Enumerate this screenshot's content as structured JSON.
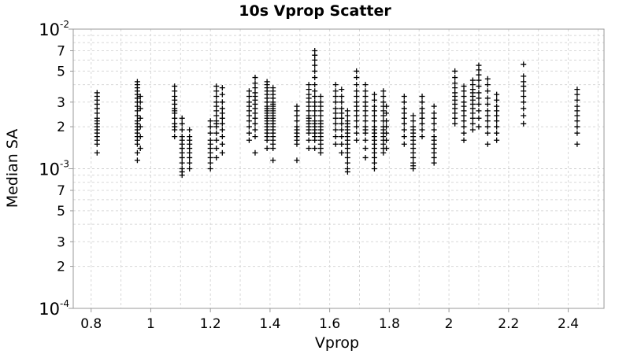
{
  "chart_data": {
    "type": "scatter",
    "title": "10s Vprop Scatter",
    "xlabel": "Vprop",
    "ylabel": "Median SA",
    "xlim": [
      0.74,
      2.52
    ],
    "ylim": [
      0.0001,
      0.01
    ],
    "yscale": "log",
    "grid": true,
    "marker": "+",
    "marker_color": "#000000",
    "x_ticks": [
      "0.8",
      "1",
      "1.2",
      "1.4",
      "1.6",
      "1.8",
      "2",
      "2.2",
      "2.4"
    ],
    "x_tick_values": [
      0.8,
      1.0,
      1.2,
      1.4,
      1.6,
      1.8,
      2.0,
      2.2,
      2.4
    ],
    "y_major_ticks": [
      {
        "value": 0.0001,
        "base": "10",
        "exp": "-4"
      },
      {
        "value": 0.001,
        "base": "10",
        "exp": "-3"
      },
      {
        "value": 0.01,
        "base": "10",
        "exp": "-2"
      }
    ],
    "y_minor_ticks": [
      {
        "value": 0.0002,
        "label": "2"
      },
      {
        "value": 0.0003,
        "label": "3"
      },
      {
        "value": 0.0005,
        "label": "5"
      },
      {
        "value": 0.0007,
        "label": "7"
      },
      {
        "value": 0.002,
        "label": "2"
      },
      {
        "value": 0.003,
        "label": "3"
      },
      {
        "value": 0.005,
        "label": "5"
      },
      {
        "value": 0.007,
        "label": "7"
      }
    ],
    "y_grid_values": [
      0.0002,
      0.0003,
      0.0004,
      0.0005,
      0.0006,
      0.0007,
      0.0008,
      0.0009,
      0.002,
      0.003,
      0.004,
      0.005,
      0.006,
      0.007,
      0.008,
      0.009
    ],
    "x_grid_values": [
      0.8,
      0.9,
      1.0,
      1.1,
      1.2,
      1.3,
      1.4,
      1.5,
      1.6,
      1.7,
      1.8,
      1.9,
      2.0,
      2.1,
      2.2,
      2.3,
      2.4,
      2.5
    ],
    "columns": [
      {
        "x": 0.82,
        "y": [
          0.0013,
          0.0015,
          0.0016,
          0.0017,
          0.0018,
          0.0019,
          0.002,
          0.0021,
          0.0022,
          0.0023,
          0.0025,
          0.0027,
          0.0029,
          0.0031,
          0.0033,
          0.0035
        ]
      },
      {
        "x": 0.955,
        "y": [
          0.00115,
          0.0013,
          0.0015,
          0.0016,
          0.0017,
          0.0018,
          0.0019,
          0.002,
          0.0021,
          0.0022,
          0.0024,
          0.0026,
          0.0028,
          0.003,
          0.0032,
          0.0034,
          0.0036,
          0.0038,
          0.004,
          0.0042
        ]
      },
      {
        "x": 0.965,
        "y": [
          0.0014,
          0.0017,
          0.002,
          0.0023,
          0.0027,
          0.003,
          0.0033
        ]
      },
      {
        "x": 1.08,
        "y": [
          0.0017,
          0.0019,
          0.002,
          0.0021,
          0.0023,
          0.0025,
          0.0026,
          0.0027,
          0.0029,
          0.0031,
          0.0033,
          0.0036,
          0.0039
        ]
      },
      {
        "x": 1.105,
        "y": [
          0.0009,
          0.00095,
          0.001,
          0.0011,
          0.0012,
          0.0013,
          0.0014,
          0.0015,
          0.0016,
          0.0017,
          0.0019,
          0.0021,
          0.0023
        ]
      },
      {
        "x": 1.13,
        "y": [
          0.001,
          0.0011,
          0.0012,
          0.0013,
          0.0014,
          0.0015,
          0.0016,
          0.0017,
          0.0019
        ]
      },
      {
        "x": 1.2,
        "y": [
          0.001,
          0.0011,
          0.0012,
          0.0013,
          0.0014,
          0.0015,
          0.0016,
          0.0018,
          0.002,
          0.0022
        ]
      },
      {
        "x": 1.22,
        "y": [
          0.0012,
          0.0014,
          0.0016,
          0.0018,
          0.002,
          0.0021,
          0.0022,
          0.0024,
          0.0026,
          0.0028,
          0.003,
          0.0033,
          0.0036,
          0.0039
        ]
      },
      {
        "x": 1.24,
        "y": [
          0.0013,
          0.0015,
          0.0017,
          0.0019,
          0.0021,
          0.0023,
          0.0025,
          0.0027,
          0.003,
          0.0034,
          0.0038
        ]
      },
      {
        "x": 1.33,
        "y": [
          0.0016,
          0.0018,
          0.002,
          0.0022,
          0.0024,
          0.0026,
          0.0028,
          0.003,
          0.0033,
          0.0036
        ]
      },
      {
        "x": 1.35,
        "y": [
          0.0013,
          0.0017,
          0.0019,
          0.0021,
          0.0023,
          0.0025,
          0.0027,
          0.0029,
          0.0031,
          0.0033,
          0.0035,
          0.0038,
          0.0041,
          0.0045
        ]
      },
      {
        "x": 1.39,
        "y": [
          0.0014,
          0.0016,
          0.0017,
          0.0018,
          0.0019,
          0.002,
          0.0021,
          0.0022,
          0.0023,
          0.0024,
          0.0025,
          0.0026,
          0.0027,
          0.0028,
          0.003,
          0.0032,
          0.0034,
          0.0036,
          0.0038,
          0.004,
          0.0042
        ]
      },
      {
        "x": 1.41,
        "y": [
          0.00115,
          0.0014,
          0.0015,
          0.0016,
          0.0017,
          0.0018,
          0.0019,
          0.002,
          0.0021,
          0.0022,
          0.0023,
          0.0024,
          0.0025,
          0.0026,
          0.0027,
          0.0028,
          0.0029,
          0.003,
          0.0032,
          0.0034,
          0.0036,
          0.0038
        ]
      },
      {
        "x": 1.49,
        "y": [
          0.00115,
          0.0015,
          0.0016,
          0.0017,
          0.0018,
          0.0019,
          0.002,
          0.0022,
          0.0024,
          0.0026,
          0.0028
        ]
      },
      {
        "x": 1.53,
        "y": [
          0.0014,
          0.0016,
          0.0018,
          0.0019,
          0.002,
          0.0021,
          0.0022,
          0.0023,
          0.0024,
          0.0026,
          0.0028,
          0.003,
          0.0032,
          0.0034,
          0.0037,
          0.004
        ]
      },
      {
        "x": 1.55,
        "y": [
          0.0014,
          0.0016,
          0.0017,
          0.0018,
          0.0019,
          0.002,
          0.0021,
          0.0022,
          0.0024,
          0.0026,
          0.0028,
          0.003,
          0.0033,
          0.0036,
          0.004,
          0.0045,
          0.005,
          0.0055,
          0.006,
          0.0065,
          0.007
        ]
      },
      {
        "x": 1.57,
        "y": [
          0.0013,
          0.0014,
          0.0015,
          0.0016,
          0.0017,
          0.0018,
          0.0019,
          0.002,
          0.0021,
          0.0022,
          0.0024,
          0.0026,
          0.0028,
          0.003,
          0.0033
        ]
      },
      {
        "x": 1.62,
        "y": [
          0.0015,
          0.0017,
          0.0019,
          0.0021,
          0.0023,
          0.0025,
          0.0027,
          0.003,
          0.0033,
          0.0036,
          0.004
        ]
      },
      {
        "x": 1.64,
        "y": [
          0.0013,
          0.0015,
          0.0017,
          0.0019,
          0.0021,
          0.0023,
          0.0025,
          0.0027,
          0.003,
          0.0033,
          0.0037
        ]
      },
      {
        "x": 1.66,
        "y": [
          0.00095,
          0.001,
          0.0011,
          0.0012,
          0.0013,
          0.0014,
          0.0015,
          0.0016,
          0.0017,
          0.0018,
          0.0019,
          0.002,
          0.0021,
          0.0022,
          0.0024,
          0.0026
        ]
      },
      {
        "x": 1.69,
        "y": [
          0.0016,
          0.0018,
          0.002,
          0.0022,
          0.0024,
          0.0026,
          0.0028,
          0.003,
          0.0033,
          0.0036,
          0.004,
          0.0045,
          0.005
        ]
      },
      {
        "x": 1.72,
        "y": [
          0.0012,
          0.0014,
          0.0016,
          0.0018,
          0.0019,
          0.002,
          0.0022,
          0.0024,
          0.0026,
          0.0028,
          0.003,
          0.0033,
          0.0036,
          0.004
        ]
      },
      {
        "x": 1.75,
        "y": [
          0.001,
          0.0011,
          0.0012,
          0.0013,
          0.0014,
          0.0015,
          0.0016,
          0.0017,
          0.0018,
          0.0019,
          0.002,
          0.0022,
          0.0024,
          0.0026,
          0.0028,
          0.0031,
          0.0034
        ]
      },
      {
        "x": 1.78,
        "y": [
          0.0013,
          0.0014,
          0.0015,
          0.0016,
          0.0017,
          0.0018,
          0.0019,
          0.002,
          0.0022,
          0.0024,
          0.0026,
          0.0028,
          0.003,
          0.0033,
          0.0036
        ]
      },
      {
        "x": 1.79,
        "y": [
          0.0014,
          0.0016,
          0.0018,
          0.002,
          0.0022,
          0.0025,
          0.0028
        ]
      },
      {
        "x": 1.85,
        "y": [
          0.0015,
          0.0017,
          0.0019,
          0.0021,
          0.0023,
          0.0025,
          0.0027,
          0.003,
          0.0033
        ]
      },
      {
        "x": 1.88,
        "y": [
          0.001,
          0.00105,
          0.0011,
          0.0012,
          0.0013,
          0.0014,
          0.0015,
          0.0016,
          0.0017,
          0.0018,
          0.0019,
          0.002,
          0.0022,
          0.0024
        ]
      },
      {
        "x": 1.91,
        "y": [
          0.0017,
          0.0019,
          0.0021,
          0.0023,
          0.0025,
          0.0027,
          0.003,
          0.0033
        ]
      },
      {
        "x": 1.95,
        "y": [
          0.0011,
          0.0012,
          0.0013,
          0.0014,
          0.0015,
          0.0016,
          0.0017,
          0.0019,
          0.0021,
          0.0023,
          0.0025,
          0.0028
        ]
      },
      {
        "x": 2.02,
        "y": [
          0.0021,
          0.0023,
          0.0025,
          0.0027,
          0.0029,
          0.0031,
          0.0033,
          0.0035,
          0.0038,
          0.0041,
          0.0045,
          0.005
        ]
      },
      {
        "x": 2.05,
        "y": [
          0.0016,
          0.0018,
          0.002,
          0.0022,
          0.0024,
          0.0026,
          0.0028,
          0.003,
          0.0033,
          0.0036,
          0.0039
        ]
      },
      {
        "x": 2.08,
        "y": [
          0.0019,
          0.0021,
          0.0023,
          0.0025,
          0.0027,
          0.0029,
          0.0031,
          0.0033,
          0.0035,
          0.0037,
          0.004,
          0.0043
        ]
      },
      {
        "x": 2.1,
        "y": [
          0.002,
          0.0023,
          0.0026,
          0.0029,
          0.0032,
          0.0035,
          0.0039,
          0.0043,
          0.0047,
          0.0051,
          0.0055
        ]
      },
      {
        "x": 2.13,
        "y": [
          0.0015,
          0.0018,
          0.002,
          0.0022,
          0.0024,
          0.0026,
          0.0029,
          0.0032,
          0.0036,
          0.004,
          0.0044
        ]
      },
      {
        "x": 2.16,
        "y": [
          0.0016,
          0.0018,
          0.002,
          0.0022,
          0.0024,
          0.0026,
          0.0028,
          0.0031,
          0.0034
        ]
      },
      {
        "x": 2.25,
        "y": [
          0.0021,
          0.0024,
          0.0027,
          0.003,
          0.0033,
          0.0036,
          0.0039,
          0.0042,
          0.0046,
          0.0056
        ]
      },
      {
        "x": 2.43,
        "y": [
          0.0015,
          0.0018,
          0.002,
          0.0022,
          0.0024,
          0.0026,
          0.0028,
          0.0031,
          0.0034,
          0.0037
        ]
      }
    ]
  }
}
